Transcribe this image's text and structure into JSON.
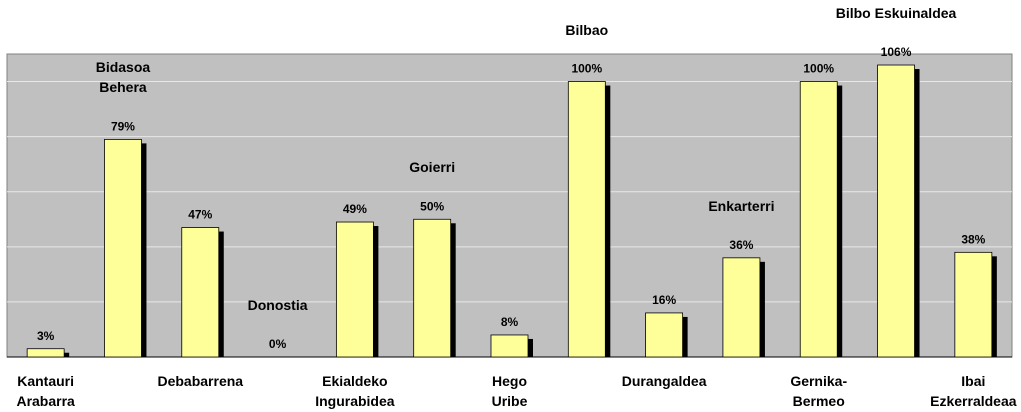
{
  "chart_data": {
    "type": "bar",
    "categories": [
      "Kantauri\nArabarra",
      "Bidasoa\nBehera",
      "Debabarrena",
      "Donostia",
      "Ekialdeko\nIngurabidea",
      "Goierri",
      "Hego\nUribe",
      "Bilbao",
      "Durangaldea",
      "Enkarterri",
      "Gernika-\nBermeo",
      "Bilbo Eskuinaldea",
      "Ibai\nEzkerraldeaa"
    ],
    "values": [
      3,
      79,
      47,
      0,
      49,
      50,
      8,
      100,
      16,
      36,
      100,
      106,
      38
    ],
    "value_labels": [
      "3%",
      "79%",
      "47%",
      "0%",
      "49%",
      "50%",
      "8%",
      "100%",
      "16%",
      "36%",
      "100%",
      "106%",
      "38%"
    ],
    "color": "#ffff99",
    "ylim": [
      0,
      110
    ],
    "yticks": [
      0,
      20,
      40,
      60,
      80,
      100
    ],
    "grid": true
  }
}
